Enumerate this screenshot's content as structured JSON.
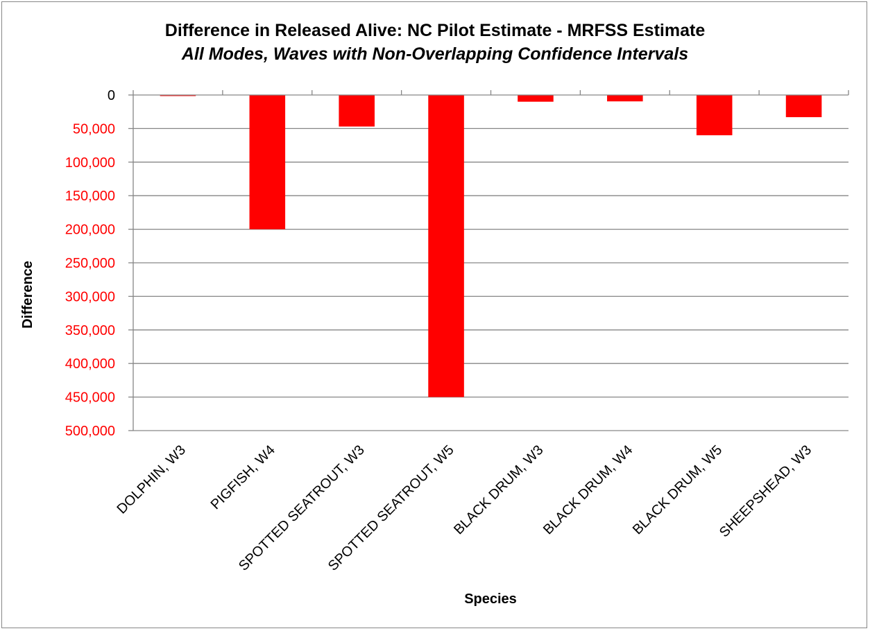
{
  "chart_data": {
    "type": "bar",
    "title": "Difference in Released Alive: NC Pilot Estimate - MRFSS Estimate",
    "subtitle": "All Modes, Waves with Non-Overlapping Confidence Intervals",
    "xlabel": "Species",
    "ylabel": "Difference",
    "categories": [
      "DOLPHIN, W3",
      "PIGFISH, W4",
      "SPOTTED SEATROUT, W3",
      "SPOTTED SEATROUT, W5",
      "BLACK DRUM, W3",
      "BLACK DRUM, W4",
      "BLACK DRUM, W5",
      "SHEEPSHEAD, W3"
    ],
    "values": [
      1500,
      200000,
      47000,
      450000,
      10000,
      9500,
      60000,
      33000
    ],
    "ylim": [
      0,
      500000
    ],
    "y_inverted": true,
    "yticks": [
      0,
      50000,
      100000,
      150000,
      200000,
      250000,
      300000,
      350000,
      400000,
      450000,
      500000
    ],
    "ytick_labels": [
      "0",
      "50,000",
      "100,000",
      "150,000",
      "200,000",
      "250,000",
      "300,000",
      "350,000",
      "400,000",
      "450,000",
      "500,000"
    ],
    "grid": true,
    "legend": "none",
    "bar_color": "#ff0000",
    "tick_label_color": "#ff0000",
    "gridline_color": "#868686"
  }
}
